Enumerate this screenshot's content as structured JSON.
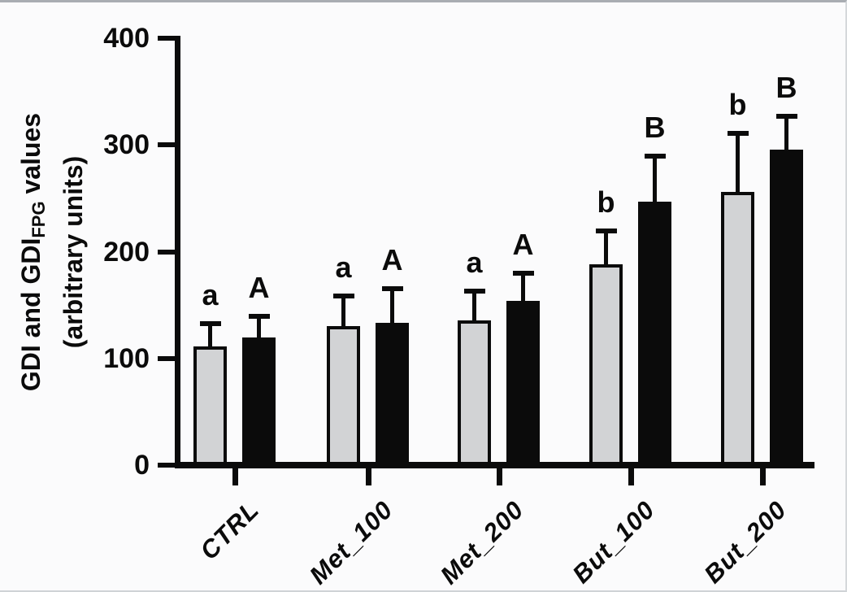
{
  "figure": {
    "ylabel": {
      "line1_prefix": "GDI and GDI",
      "line1_sub": "FPG",
      "line1_suffix": " values",
      "line2": "(arbitrary units)"
    }
  },
  "chart_data": {
    "type": "bar",
    "title": "",
    "xlabel": "",
    "ylabel": "GDI and GDI_FPG values (arbitrary units)",
    "categories": [
      "CTRL",
      "Met_100",
      "Met_200",
      "But_100",
      "But_200"
    ],
    "series": [
      {
        "name": "GDI",
        "fill": "#d2d3d5",
        "values": [
          111,
          130,
          136,
          188,
          256
        ],
        "errors_plus": [
          24,
          31,
          29,
          34,
          57
        ],
        "sig_letters": [
          "a",
          "a",
          "a",
          "b",
          "b"
        ]
      },
      {
        "name": "GDI_FPG",
        "fill": "#0b0b0b",
        "values": [
          120,
          133,
          154,
          247,
          296
        ],
        "errors_plus": [
          22,
          35,
          28,
          45,
          33
        ],
        "sig_letters": [
          "A",
          "A",
          "A",
          "B",
          "B"
        ]
      }
    ],
    "yticks": [
      0,
      100,
      200,
      300,
      400
    ],
    "ylim": [
      0,
      400
    ],
    "grid": false,
    "legend": "none",
    "error_bars": "upper only, capped"
  },
  "colors": {
    "background": "#fbfbfc",
    "axis": "#0b0b0b",
    "gray_bar": "#d2d3d5",
    "black_bar": "#0b0b0b"
  }
}
